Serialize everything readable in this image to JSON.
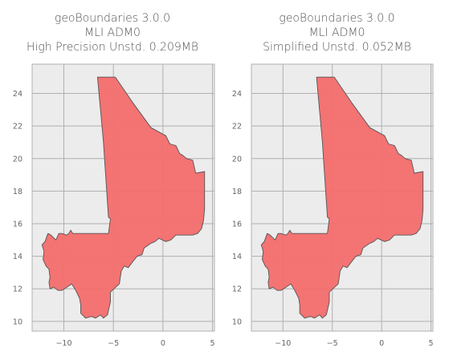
{
  "maps": [
    {
      "title_lines": [
        "geoBoundaries 3.0.0",
        "MLI ADM0",
        "High Precision Unstd. 0.209MB"
      ],
      "xticks": [
        -10,
        -5,
        0,
        5
      ],
      "yticks": [
        10,
        12,
        14,
        16,
        18,
        20,
        22,
        24
      ],
      "xlim": [
        -13.2,
        5.2
      ],
      "ylim": [
        9.4,
        25.8
      ],
      "fill_color": "#f46d6d",
      "edge_color": "#555555",
      "background": "#ececec",
      "grid_color": "#b0b0b0"
    },
    {
      "title_lines": [
        "geoBoundaries 3.0.0",
        "MLI ADM0",
        "Simplified Unstd. 0.052MB"
      ],
      "xticks": [
        -10,
        -5,
        0,
        5
      ],
      "yticks": [
        10,
        12,
        14,
        16,
        18,
        20,
        22,
        24
      ],
      "xlim": [
        -13.2,
        5.2
      ],
      "ylim": [
        9.4,
        25.8
      ],
      "fill_color": "#f46d6d",
      "edge_color": "#555555",
      "background": "#ececec",
      "grid_color": "#b0b0b0"
    }
  ],
  "chart_data": [
    {
      "type": "map",
      "title": "geoBoundaries 3.0.0 MLI ADM0 High Precision Unstd. 0.209MB",
      "xticks": [
        -10,
        -5,
        0,
        5
      ],
      "yticks": [
        10,
        12,
        14,
        16,
        18,
        20,
        22,
        24
      ],
      "xlim": [
        -13.2,
        5.2
      ],
      "ylim": [
        9.4,
        25.8
      ],
      "grid": true
    },
    {
      "type": "map",
      "title": "geoBoundaries 3.0.0 MLI ADM0 Simplified Unstd. 0.052MB",
      "xticks": [
        -10,
        -5,
        0,
        5
      ],
      "yticks": [
        10,
        12,
        14,
        16,
        18,
        20,
        22,
        24
      ],
      "xlim": [
        -13.2,
        5.2
      ],
      "ylim": [
        9.4,
        25.8
      ],
      "grid": true
    }
  ]
}
